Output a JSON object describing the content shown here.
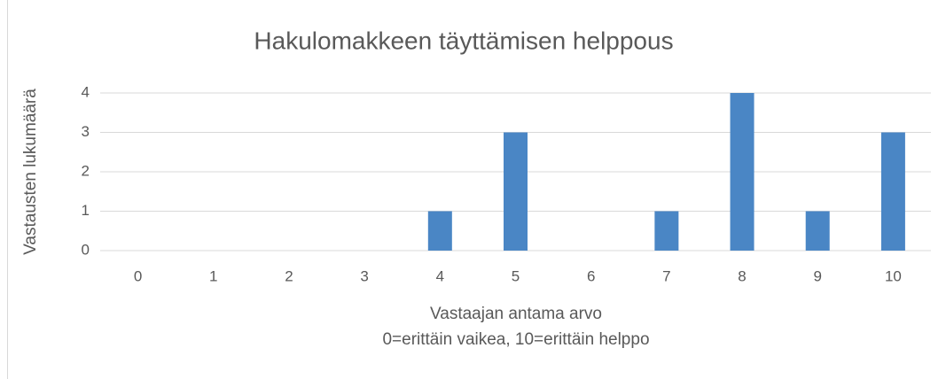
{
  "chart_data": {
    "type": "bar",
    "title": "Hakulomakkeen täyttämisen helppous",
    "ylabel": "Vastausten lukumäärä",
    "xlabel": [
      "Vastaajan antama arvo",
      "0=erittäin vaikea, 10=erittäin helppo"
    ],
    "categories": [
      "0",
      "1",
      "2",
      "3",
      "4",
      "5",
      "6",
      "7",
      "8",
      "9",
      "10"
    ],
    "values": [
      0,
      0,
      0,
      0,
      1,
      3,
      0,
      1,
      4,
      1,
      3
    ],
    "color": "#4a86c5",
    "ylim": [
      0,
      4
    ],
    "yticks": [
      0,
      1,
      2,
      3,
      4
    ],
    "grid": true
  }
}
